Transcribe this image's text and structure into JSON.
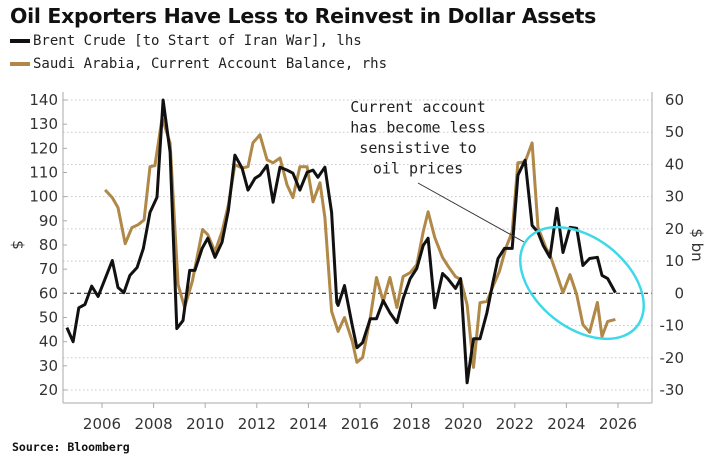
{
  "title": "Oil Exporters Have Less to Reinvest in Dollar Assets",
  "source": "Source: Bloomberg",
  "colors": {
    "brent": "#111111",
    "saudi": "#b08848",
    "ellipse": "#3fd8e8",
    "grid": "#c8c8c8"
  },
  "chart_data": {
    "type": "line",
    "title": "Oil Exporters Have Less to Reinvest in Dollar Assets",
    "xlabel": "",
    "ylabel_left": "$",
    "ylabel_right": "$ bn",
    "xlim": [
      2004.5,
      2027.3
    ],
    "ylim_left": [
      20,
      140
    ],
    "ylim_right": [
      -30,
      60
    ],
    "x_ticks": [
      "2006",
      "2008",
      "2010",
      "2012",
      "2014",
      "2016",
      "2018",
      "2020",
      "2022",
      "2024",
      "2026"
    ],
    "y_ticks_left": [
      "140",
      "130",
      "120",
      "110",
      "100",
      "90",
      "80",
      "70",
      "60",
      "50",
      "40",
      "30",
      "20"
    ],
    "y_ticks_right": [
      "60",
      "50",
      "40",
      "30",
      "20",
      "10",
      "0",
      "-10",
      "-20",
      "-30"
    ],
    "reference_line": {
      "axis": "right",
      "value": 0
    },
    "grid": true,
    "legend": [
      {
        "label": "Brent Crude [to Start of Iran War], lhs",
        "series": "brent"
      },
      {
        "label": "Saudi Arabia, Current Account Balance, rhs",
        "series": "saudi"
      }
    ],
    "annotation": {
      "lines": [
        "Current account",
        "has become less",
        "sensistive to",
        "oil prices"
      ]
    },
    "series": [
      {
        "name": "Brent Crude [to Start of Iran War], lhs",
        "axis": "left",
        "x": [
          2004.64,
          2004.88,
          2005.1,
          2005.34,
          2005.6,
          2005.85,
          2006.12,
          2006.4,
          2006.62,
          2006.85,
          2007.08,
          2007.36,
          2007.6,
          2007.86,
          2008.13,
          2008.37,
          2008.64,
          2008.9,
          2009.14,
          2009.4,
          2009.6,
          2009.88,
          2010.1,
          2010.38,
          2010.65,
          2010.9,
          2011.15,
          2011.43,
          2011.66,
          2011.93,
          2012.12,
          2012.4,
          2012.63,
          2012.9,
          2013.17,
          2013.4,
          2013.67,
          2013.95,
          2014.18,
          2014.37,
          2014.64,
          2014.9,
          2015.1,
          2015.15,
          2015.4,
          2015.7,
          2015.88,
          2016.1,
          2016.4,
          2016.64,
          2016.9,
          2017.16,
          2017.43,
          2017.67,
          2017.94,
          2018.2,
          2018.45,
          2018.64,
          2018.9,
          2019.2,
          2019.4,
          2019.7,
          2019.9,
          2020.15,
          2020.4,
          2020.65,
          2020.92,
          2021.15,
          2021.35,
          2021.6,
          2021.9,
          2022.12,
          2022.4,
          2022.67,
          2022.9,
          2023.1,
          2023.36,
          2023.63,
          2023.87,
          2024.14,
          2024.4,
          2024.64,
          2024.9,
          2025.2,
          2025.38,
          2025.6,
          2025.9
        ],
        "values": [
          45.8,
          40,
          54,
          55.4,
          63,
          58.7,
          66,
          73.6,
          62.4,
          60.3,
          67.4,
          70.7,
          78.5,
          93.5,
          99.8,
          140,
          118.4,
          45.4,
          48.7,
          69.5,
          69.5,
          78.6,
          82.8,
          74.9,
          81.1,
          94.4,
          117.2,
          111.8,
          102.7,
          107.6,
          108.9,
          113,
          97.7,
          112.2,
          111,
          109.7,
          102.7,
          110.1,
          111,
          108,
          112.2,
          93.5,
          56.2,
          55,
          63.2,
          46.6,
          37.5,
          39.6,
          49.5,
          49.5,
          57,
          52,
          47.9,
          57.8,
          66,
          70.3,
          79.8,
          82.8,
          54,
          68.2,
          66.1,
          62,
          66.1,
          23,
          41.2,
          41.2,
          52,
          64.5,
          74.4,
          78.6,
          78.6,
          108.9,
          115.1,
          88.1,
          85.2,
          79.8,
          74.9,
          95.2,
          76.9,
          87.3,
          86.9,
          71.5,
          74.4,
          74.9,
          67.4,
          66.1,
          60.3
        ]
      },
      {
        "name": "Saudi Arabia, Current Account Balance, rhs",
        "axis": "right",
        "x": [
          2006.12,
          2006.4,
          2006.62,
          2006.9,
          2007.16,
          2007.4,
          2007.63,
          2007.86,
          2008.05,
          2008.33,
          2008.64,
          2008.95,
          2009.2,
          2009.5,
          2009.9,
          2010.1,
          2010.38,
          2010.65,
          2010.9,
          2011.15,
          2011.43,
          2011.66,
          2011.85,
          2012.12,
          2012.4,
          2012.63,
          2012.9,
          2013.17,
          2013.4,
          2013.67,
          2013.95,
          2014.18,
          2014.45,
          2014.64,
          2014.9,
          2015.15,
          2015.4,
          2015.7,
          2015.88,
          2016.1,
          2016.4,
          2016.64,
          2016.9,
          2017.16,
          2017.43,
          2017.67,
          2017.94,
          2018.2,
          2018.45,
          2018.64,
          2018.9,
          2019.2,
          2019.4,
          2019.7,
          2019.9,
          2020.15,
          2020.4,
          2020.65,
          2020.92,
          2021.15,
          2021.4,
          2021.66,
          2021.9,
          2022.12,
          2022.4,
          2022.67,
          2022.9,
          2023.2,
          2023.36,
          2023.63,
          2023.87,
          2024.14,
          2024.4,
          2024.64,
          2024.9,
          2025.2,
          2025.38,
          2025.6,
          2025.9
        ],
        "values": [
          32.1,
          29.7,
          26.6,
          15.4,
          20.4,
          21.3,
          22.8,
          39.3,
          39.6,
          54.4,
          46.7,
          2.7,
          -4.4,
          3.7,
          19.8,
          18.2,
          12.9,
          19.1,
          27.5,
          39.9,
          38.9,
          39.3,
          46.7,
          49.2,
          41.4,
          40.5,
          42,
          33.7,
          29.7,
          39.3,
          39.3,
          28.4,
          34.3,
          23.5,
          -5.6,
          -11.8,
          -7.5,
          -14.9,
          -21.4,
          -19.9,
          -7.5,
          4.9,
          -2.5,
          4.9,
          -4.4,
          5.2,
          6.4,
          8.9,
          19.1,
          25.3,
          17.3,
          11.1,
          8.6,
          5.2,
          4.3,
          -3.5,
          -23,
          -2.9,
          -2.5,
          2.1,
          6.7,
          14.2,
          19.1,
          40.5,
          40.8,
          46.7,
          20.4,
          14.2,
          12,
          5.8,
          0.2,
          5.8,
          -0.4,
          -9.7,
          -12.1,
          -2.8,
          -13.4,
          -8.7,
          -8.1
        ]
      }
    ]
  }
}
